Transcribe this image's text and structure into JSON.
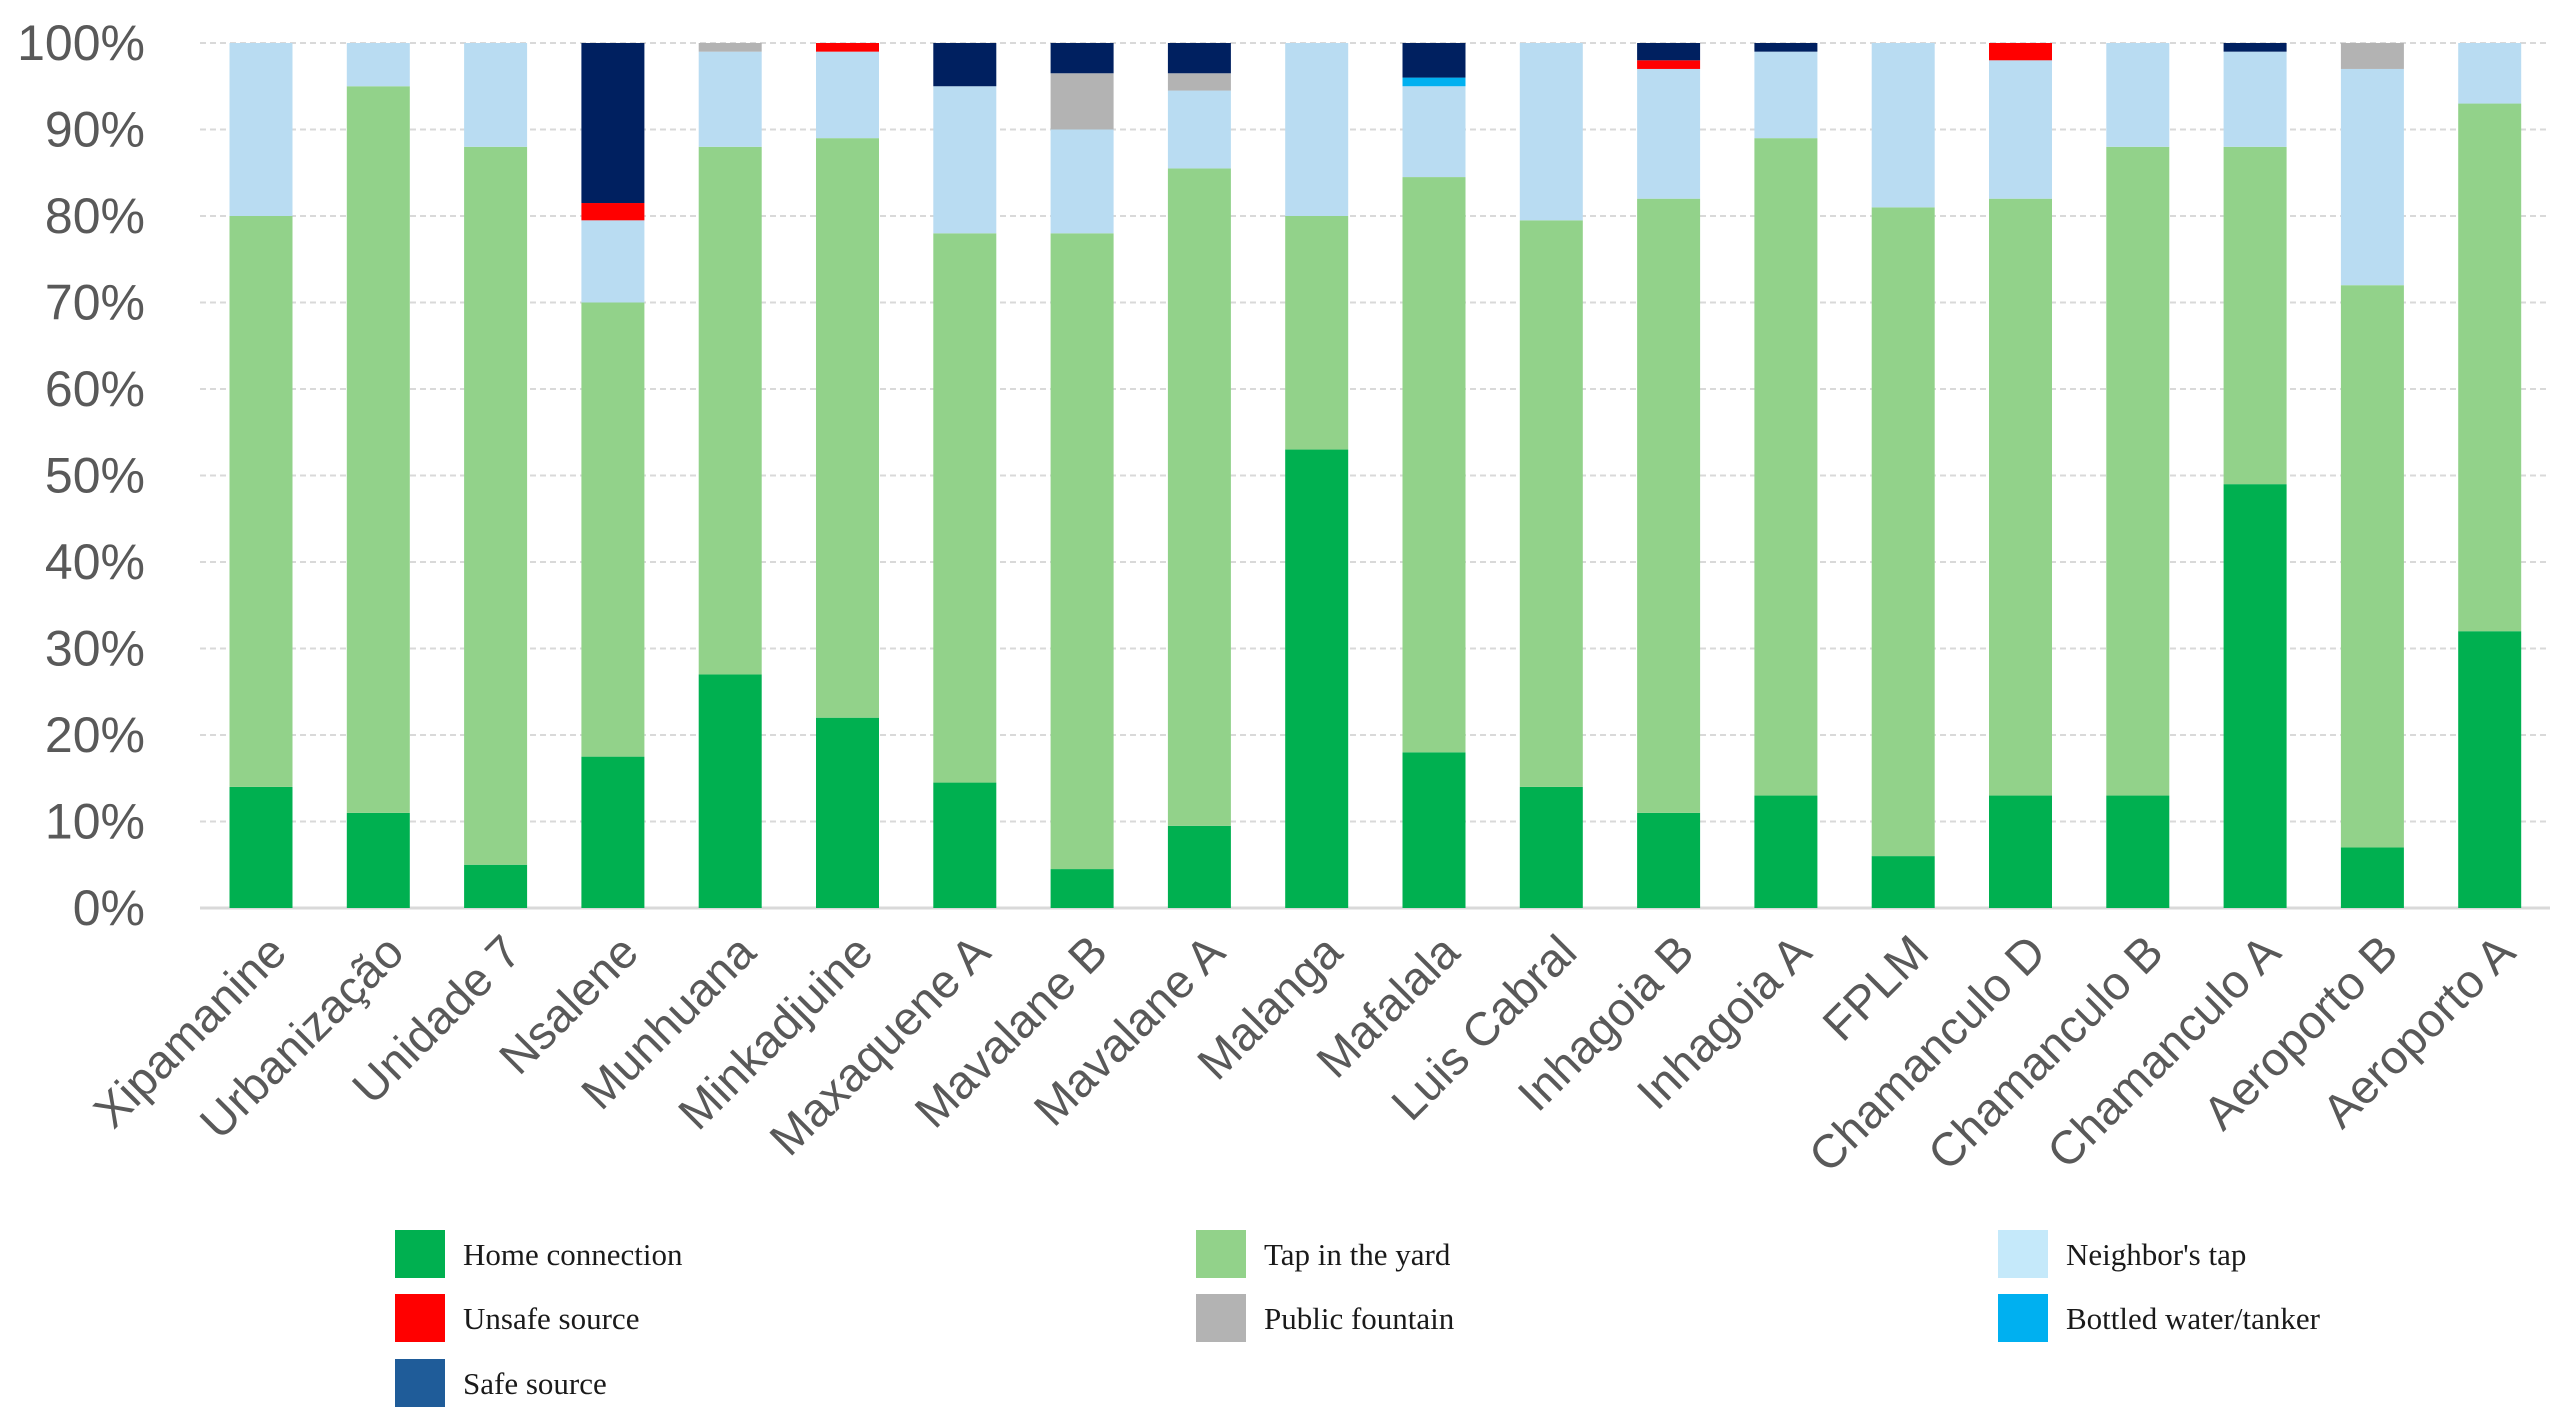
{
  "chart_data": {
    "type": "bar",
    "stacked": true,
    "title": "",
    "xlabel": "",
    "ylabel": "",
    "ylim": [
      0,
      100
    ],
    "y_ticks": [
      "0%",
      "10%",
      "20%",
      "30%",
      "40%",
      "50%",
      "60%",
      "70%",
      "80%",
      "90%",
      "100%"
    ],
    "categories": [
      "Xipamanine",
      "Urbanização",
      "Unidade 7",
      "Nsalene",
      "Munhuana",
      "Minkadjuine",
      "Maxaquene A",
      "Mavalane B",
      "Mavalane A",
      "Malanga",
      "Mafalala",
      "Luis Cabral",
      "Inhagoia B",
      "Inhagoia A",
      "FPLM",
      "Chamanculo D",
      "Chamanculo B",
      "Chamanculo A",
      "Aeroporto B",
      "Aeroporto A"
    ],
    "series": [
      {
        "name": "Home connection",
        "color": "#00b050",
        "values": [
          14,
          11,
          5,
          17.5,
          27,
          22,
          14.5,
          4.5,
          9.5,
          53,
          18,
          14,
          11,
          13,
          6,
          13,
          13,
          49,
          7,
          32
        ]
      },
      {
        "name": "Tap in the yard",
        "color": "#92d28a",
        "values": [
          66,
          84,
          83,
          52.5,
          61,
          67,
          63.5,
          73.5,
          76,
          27,
          66.5,
          65.5,
          71,
          76,
          75,
          69,
          75,
          39,
          65,
          61
        ]
      },
      {
        "name": "Neighbor's tap",
        "color": "#b9dcf2",
        "values": [
          20,
          5,
          12,
          9.5,
          11,
          10,
          17,
          12,
          9,
          20,
          10.5,
          20.5,
          15,
          10,
          19,
          16,
          12,
          11,
          25,
          7
        ]
      },
      {
        "name": "Unsafe source",
        "color": "#ff0000",
        "values": [
          0,
          0,
          0,
          2,
          0,
          1,
          0,
          0,
          0,
          0,
          0,
          0,
          1,
          0,
          0,
          2,
          0,
          0,
          0,
          0
        ]
      },
      {
        "name": "Public fountain",
        "color": "#b3b3b3",
        "values": [
          0,
          0,
          0,
          0,
          1,
          0,
          0,
          6.5,
          2,
          0,
          0,
          0,
          0,
          0,
          0,
          0,
          0,
          0,
          3,
          0
        ]
      },
      {
        "name": "Bottled water/tanker",
        "color": "#00b0f0",
        "values": [
          0,
          0,
          0,
          0,
          0,
          0,
          0,
          0,
          0,
          0,
          1,
          0,
          0,
          0,
          0,
          0,
          0,
          0,
          0,
          0
        ]
      },
      {
        "name": "Safe source",
        "color": "#002060",
        "values": [
          0,
          0,
          0,
          18.5,
          0,
          0,
          5,
          3.5,
          3.5,
          0,
          4,
          0,
          2,
          1,
          0,
          0,
          0,
          1,
          0,
          0
        ]
      }
    ],
    "legend": {
      "position": "bottom",
      "items": [
        {
          "label": "Home connection",
          "color": "#00b050"
        },
        {
          "label": "Tap in the yard",
          "color": "#92d28a"
        },
        {
          "label": "Neighbor's tap",
          "color": "#c5e9fa"
        },
        {
          "label": "Unsafe source",
          "color": "#ff0000"
        },
        {
          "label": "Public fountain",
          "color": "#b3b3b3"
        },
        {
          "label": "Bottled water/tanker",
          "color": "#00b0f0"
        },
        {
          "label": "Safe source",
          "color": "#1f5c99"
        }
      ]
    }
  }
}
